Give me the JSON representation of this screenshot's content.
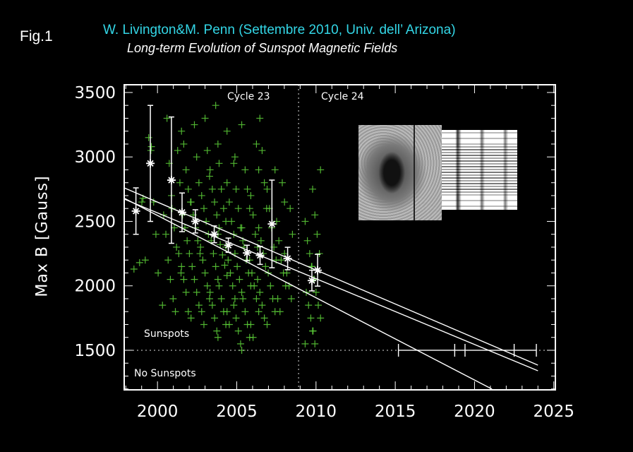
{
  "figure_label": "Fig.1",
  "chart_data": {
    "type": "scatter",
    "title": "W. Livington&M. Penn (Settembre 2010, Univ. dell’ Arizona)",
    "subtitle": "Long-term Evolution of Sunspot Magnetic Fields",
    "xlabel": "",
    "ylabel": "Max B [Gauss]",
    "xlim": [
      1997.9,
      2025.1
    ],
    "ylim": [
      1193,
      3560
    ],
    "x_ticks": [
      2000,
      2005,
      2010,
      2015,
      2020,
      2025
    ],
    "x_tick_labels": [
      "2000",
      "2005",
      "2010",
      "2015",
      "2020",
      "2025"
    ],
    "y_ticks": [
      1500,
      2000,
      2500,
      3000,
      3500
    ],
    "y_tick_labels": [
      "1500",
      "2000",
      "2500",
      "3000",
      "3500"
    ],
    "grid": false,
    "annotations": {
      "cycle23": "Cycle 23",
      "cycle24": "Cycle 24",
      "sunspots": "Sunspots",
      "no_sunspots": "No Sunspots"
    },
    "cycle_boundary_year": 2008.9,
    "sunspot_threshold": 1500,
    "colors": {
      "scatter": "#5fd43a",
      "means": "#ffffff",
      "title": "#33d6e6"
    },
    "scatter_columns": [
      {
        "x": 1998.8,
        "y": [
          2130,
          2650,
          2180
        ]
      },
      {
        "x": 1999.3,
        "y": [
          2200,
          2680,
          3050,
          3150
        ]
      },
      {
        "x": 1999.9,
        "y": [
          2100,
          2400,
          2650,
          3080
        ]
      },
      {
        "x": 2000.6,
        "y": [
          1850,
          2050,
          2200,
          2400,
          2550,
          2700,
          2950,
          3300
        ]
      },
      {
        "x": 2001.2,
        "y": [
          1800,
          1900,
          2100,
          2250,
          2300,
          2450,
          2600,
          2800,
          3050
        ]
      },
      {
        "x": 2001.8,
        "y": [
          1800,
          1950,
          2050,
          2150,
          2250,
          2350,
          2450,
          2550,
          2650,
          2750,
          2900,
          3100,
          3200
        ]
      },
      {
        "x": 2002.4,
        "y": [
          1750,
          1850,
          1950,
          2050,
          2150,
          2250,
          2350,
          2450,
          2550,
          2650,
          2800,
          3000,
          3250
        ]
      },
      {
        "x": 2003.0,
        "y": [
          1700,
          1800,
          1900,
          2000,
          2100,
          2200,
          2300,
          2400,
          2500,
          2600,
          2700,
          2850,
          3050,
          3300
        ]
      },
      {
        "x": 2003.6,
        "y": [
          1650,
          1750,
          1850,
          1950,
          2050,
          2150,
          2250,
          2350,
          2450,
          2550,
          2650,
          2750,
          2900,
          3100,
          3400
        ]
      },
      {
        "x": 2004.1,
        "y": [
          1600,
          1700,
          1800,
          1900,
          2000,
          2080,
          2160,
          2240,
          2320,
          2400,
          2500,
          2600,
          2750,
          2950,
          3200
        ]
      },
      {
        "x": 2004.6,
        "y": [
          1700,
          1800,
          1900,
          2000,
          2100,
          2200,
          2300,
          2400,
          2500,
          2650,
          2800,
          3000
        ]
      },
      {
        "x": 2005.1,
        "y": [
          1550,
          1650,
          1750,
          1850,
          1950,
          2050,
          2150,
          2250,
          2350,
          2450,
          2600,
          2750,
          2950,
          3250
        ]
      },
      {
        "x": 2005.6,
        "y": [
          1500,
          1600,
          1700,
          1800,
          1900,
          2000,
          2100,
          2200,
          2300,
          2450,
          2600,
          2750,
          2900
        ]
      },
      {
        "x": 2006.1,
        "y": [
          1600,
          1700,
          1800,
          1900,
          2000,
          2100,
          2200,
          2300,
          2400,
          2550,
          2700,
          2900,
          3100
        ]
      },
      {
        "x": 2006.6,
        "y": [
          1750,
          1850,
          1950,
          2050,
          2150,
          2250,
          2350,
          2450,
          2600,
          2800,
          3050,
          3300
        ]
      },
      {
        "x": 2007.2,
        "y": [
          1700,
          1800,
          1900,
          2000,
          2100,
          2200,
          2300,
          2450,
          2600,
          2750,
          2900
        ]
      },
      {
        "x": 2007.8,
        "y": [
          1800,
          1900,
          2000,
          2100,
          2200,
          2350,
          2500,
          2650,
          2800
        ]
      },
      {
        "x": 2008.3,
        "y": [
          1900,
          2000,
          2100,
          2250,
          2400,
          2600
        ]
      },
      {
        "x": 2009.6,
        "y": [
          1550,
          1650,
          1750,
          1850,
          1950,
          2050,
          2150,
          2250,
          2350,
          2500
        ]
      },
      {
        "x": 2010.0,
        "y": [
          1550,
          1650,
          1750,
          1850,
          1950,
          2050,
          2150,
          2250,
          2400,
          2550,
          2750,
          2900
        ]
      }
    ],
    "means": [
      {
        "x": 1998.64,
        "y": 2580,
        "err": 180
      },
      {
        "x": 1999.55,
        "y": 2950,
        "err": 450
      },
      {
        "x": 2000.88,
        "y": 2820,
        "err": 490
      },
      {
        "x": 2001.55,
        "y": 2570,
        "err": 150
      },
      {
        "x": 2002.39,
        "y": 2500,
        "err": 90
      },
      {
        "x": 2003.58,
        "y": 2400,
        "err": 65
      },
      {
        "x": 2004.47,
        "y": 2315,
        "err": 55
      },
      {
        "x": 2005.65,
        "y": 2255,
        "err": 60
      },
      {
        "x": 2006.47,
        "y": 2236,
        "err": 70
      },
      {
        "x": 2007.22,
        "y": 2480,
        "err": 340
      },
      {
        "x": 2008.21,
        "y": 2212,
        "err": 87
      },
      {
        "x": 2009.74,
        "y": 2041,
        "err": 80
      },
      {
        "x": 2010.1,
        "y": 2121,
        "err": 123
      }
    ],
    "fit_lines": [
      {
        "x": [
          1997.9,
          2024.0
        ],
        "y": [
          2760,
          1385
        ]
      },
      {
        "x": [
          1997.9,
          2024.0
        ],
        "y": [
          2673,
          1341
        ]
      },
      {
        "x": [
          1997.9,
          2021.1
        ],
        "y": [
          2680,
          1199
        ]
      }
    ],
    "threshold_crossing_bars": {
      "y": 1500,
      "ticks": [
        2015.2,
        2018.75,
        2019.4,
        2022.5,
        2023.9
      ]
    }
  }
}
